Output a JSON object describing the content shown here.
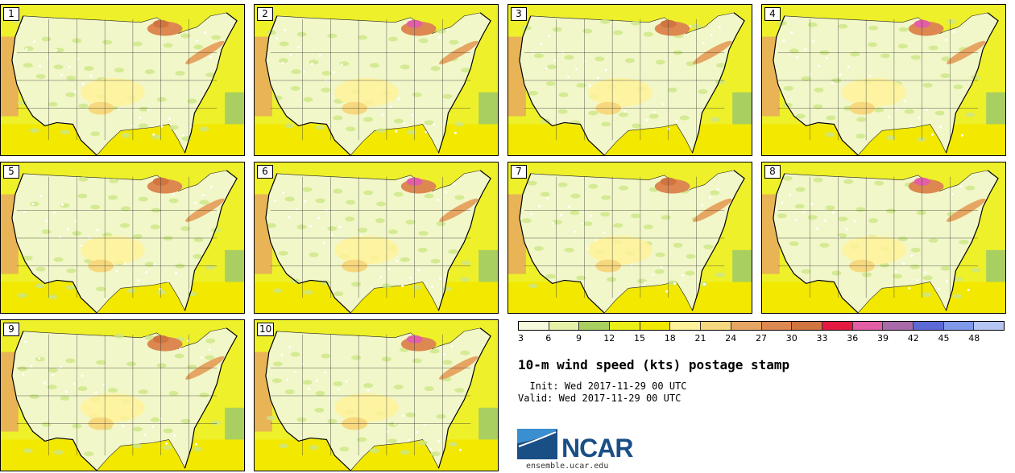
{
  "members": [
    {
      "label": "1"
    },
    {
      "label": "2"
    },
    {
      "label": "3"
    },
    {
      "label": "4"
    },
    {
      "label": "5"
    },
    {
      "label": "6"
    },
    {
      "label": "7"
    },
    {
      "label": "8"
    },
    {
      "label": "9"
    },
    {
      "label": "10"
    }
  ],
  "legend": {
    "ticks": [
      "3",
      "6",
      "9",
      "12",
      "15",
      "18",
      "21",
      "24",
      "27",
      "30",
      "33",
      "36",
      "39",
      "42",
      "45",
      "48"
    ],
    "colors": [
      "#f6fadc",
      "#e4f2a8",
      "#a9cf60",
      "#e8f018",
      "#f2e800",
      "#fff29a",
      "#f7d87e",
      "#e6a562",
      "#dc8850",
      "#d07440",
      "#e41a42",
      "#e35ea6",
      "#a86aa8",
      "#5c6ad6",
      "#7f98ea",
      "#b6c6f2"
    ]
  },
  "title": "10-m wind speed (kts) postage stamp",
  "init_line": "  Init: Wed 2017-11-29 00 UTC",
  "valid_line": "Valid: Wed 2017-11-29 00 UTC",
  "logo": {
    "text": "NCAR",
    "url": "ensemble.ucar.edu"
  }
}
